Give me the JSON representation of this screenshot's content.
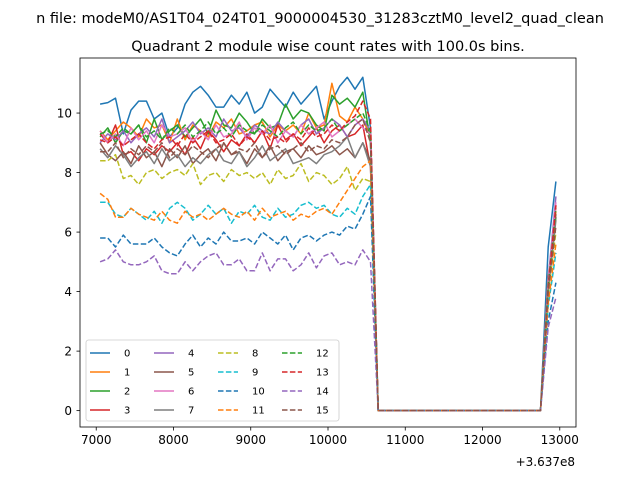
{
  "chart_data": {
    "type": "line",
    "suptitle": "n file: modeM0/AS1T04_024T01_9000004530_31283cztM0_level2_quad_clean",
    "title": "Quadrant 2 module wise count rates with 100.0s bins.",
    "xlabel": "",
    "ylabel": "",
    "x_offset_label": "+3.637e8",
    "xlim": [
      6790,
      13210
    ],
    "ylim": [
      -0.55,
      11.85
    ],
    "xticks": [
      7000,
      8000,
      9000,
      10000,
      11000,
      12000,
      13000
    ],
    "yticks": [
      0,
      2,
      4,
      6,
      8,
      10
    ],
    "grid": false,
    "legend": {
      "placement": "lower-left",
      "columns": 4
    },
    "x": [
      7050,
      7150,
      7250,
      7350,
      7450,
      7550,
      7650,
      7750,
      7850,
      7950,
      8050,
      8150,
      8250,
      8350,
      8450,
      8550,
      8650,
      8750,
      8850,
      8950,
      9050,
      9150,
      9250,
      9350,
      9450,
      9550,
      9650,
      9750,
      9850,
      9950,
      10050,
      10150,
      10250,
      10350,
      10450,
      10550,
      10650,
      10750,
      10850,
      10950,
      11050,
      11150,
      11250,
      11350,
      11450,
      11550,
      11650,
      11750,
      11850,
      11950,
      12050,
      12150,
      12250,
      12350,
      12450,
      12550,
      12650,
      12750,
      12850,
      12950
    ],
    "series": [
      {
        "name": "0",
        "color": "#1f77b4",
        "dash": "solid",
        "values": [
          10.3,
          10.35,
          10.5,
          9.3,
          10.1,
          10.4,
          10.4,
          9.8,
          10.0,
          9.2,
          9.5,
          10.3,
          10.7,
          10.9,
          10.6,
          10.2,
          10.2,
          10.6,
          10.3,
          10.7,
          10.0,
          10.2,
          10.8,
          10.5,
          10.2,
          10.7,
          10.3,
          10.6,
          10.9,
          9.8,
          10.4,
          10.9,
          11.2,
          10.8,
          11.2,
          9.5,
          0,
          0,
          0,
          0,
          0,
          0,
          0,
          0,
          0,
          0,
          0,
          0,
          0,
          0,
          0,
          0,
          0,
          0,
          0,
          0,
          0,
          0,
          5.5,
          7.7
        ]
      },
      {
        "name": "1",
        "color": "#ff7f0e",
        "dash": "solid",
        "values": [
          9.4,
          9.1,
          9.4,
          9.7,
          9.5,
          9.2,
          9.8,
          9.5,
          9.6,
          9.0,
          9.8,
          9.1,
          9.6,
          9.4,
          9.2,
          9.7,
          9.5,
          9.8,
          9.3,
          9.4,
          9.6,
          9.7,
          9.2,
          9.6,
          9.4,
          9.6,
          9.3,
          10.0,
          9.5,
          9.6,
          11.0,
          9.9,
          9.7,
          10.2,
          9.8,
          9.2,
          0,
          0,
          0,
          0,
          0,
          0,
          0,
          0,
          0,
          0,
          0,
          0,
          0,
          0,
          0,
          0,
          0,
          0,
          0,
          0,
          0,
          0,
          4.5,
          6.7
        ]
      },
      {
        "name": "2",
        "color": "#2ca02c",
        "dash": "solid",
        "values": [
          9.2,
          9.5,
          9.0,
          9.4,
          9.3,
          9.6,
          9.0,
          9.8,
          9.1,
          9.4,
          9.6,
          9.2,
          9.5,
          9.8,
          9.3,
          10.1,
          9.6,
          9.5,
          10.0,
          9.7,
          9.3,
          9.8,
          9.5,
          9.6,
          10.3,
          9.8,
          10.1,
          10.0,
          9.6,
          9.4,
          10.6,
          10.3,
          10.5,
          10.2,
          10.7,
          9.0,
          0,
          0,
          0,
          0,
          0,
          0,
          0,
          0,
          0,
          0,
          0,
          0,
          0,
          0,
          0,
          0,
          0,
          0,
          0,
          0,
          0,
          0,
          4.2,
          6.5
        ]
      },
      {
        "name": "3",
        "color": "#d62728",
        "dash": "solid",
        "values": [
          9.3,
          9.0,
          9.6,
          8.6,
          8.7,
          8.4,
          8.8,
          8.6,
          8.9,
          8.7,
          9.0,
          8.6,
          9.2,
          8.8,
          9.4,
          9.1,
          8.7,
          9.1,
          8.9,
          9.3,
          9.0,
          9.4,
          8.8,
          9.6,
          9.1,
          9.3,
          8.9,
          9.2,
          9.5,
          9.0,
          9.4,
          9.6,
          9.2,
          9.3,
          9.6,
          8.2,
          0,
          0,
          0,
          0,
          0,
          0,
          0,
          0,
          0,
          0,
          0,
          0,
          0,
          0,
          0,
          0,
          0,
          0,
          0,
          0,
          0,
          0,
          4.0,
          6.9
        ]
      },
      {
        "name": "4",
        "color": "#9467bd",
        "dash": "solid",
        "values": [
          9.0,
          9.3,
          9.1,
          9.4,
          9.0,
          9.3,
          9.5,
          9.2,
          9.8,
          9.0,
          9.2,
          9.4,
          9.7,
          9.3,
          9.5,
          9.2,
          9.8,
          9.4,
          9.5,
          9.2,
          9.6,
          9.4,
          9.3,
          9.7,
          9.4,
          9.2,
          9.6,
          9.8,
          9.3,
          9.5,
          9.8,
          9.6,
          9.2,
          9.6,
          9.8,
          9.4,
          0,
          0,
          0,
          0,
          0,
          0,
          0,
          0,
          0,
          0,
          0,
          0,
          0,
          0,
          0,
          0,
          0,
          0,
          0,
          0,
          0,
          0,
          4.4,
          7.2
        ]
      },
      {
        "name": "5",
        "color": "#8c564b",
        "dash": "solid",
        "values": [
          9.0,
          8.6,
          8.4,
          8.7,
          8.3,
          8.9,
          8.5,
          8.7,
          8.2,
          8.8,
          8.5,
          8.9,
          8.3,
          8.6,
          8.8,
          8.4,
          9.0,
          8.6,
          8.7,
          8.3,
          8.8,
          8.5,
          8.9,
          8.4,
          8.7,
          8.8,
          8.5,
          8.9,
          8.6,
          8.7,
          8.9,
          8.6,
          8.8,
          8.5,
          9.0,
          8.4,
          0,
          0,
          0,
          0,
          0,
          0,
          0,
          0,
          0,
          0,
          0,
          0,
          0,
          0,
          0,
          0,
          0,
          0,
          0,
          0,
          0,
          0,
          4.1,
          6.6
        ]
      },
      {
        "name": "6",
        "color": "#e377c2",
        "dash": "solid",
        "values": [
          9.4,
          9.0,
          9.3,
          8.9,
          9.5,
          9.1,
          9.4,
          9.0,
          9.6,
          9.2,
          9.3,
          9.5,
          9.0,
          9.4,
          9.1,
          9.6,
          9.2,
          9.3,
          9.7,
          9.1,
          9.5,
          9.3,
          9.6,
          9.0,
          9.4,
          9.2,
          9.6,
          9.3,
          9.5,
          9.7,
          9.2,
          9.4,
          9.6,
          9.8,
          9.5,
          9.3,
          0,
          0,
          0,
          0,
          0,
          0,
          0,
          0,
          0,
          0,
          0,
          0,
          0,
          0,
          0,
          0,
          0,
          0,
          0,
          0,
          0,
          0,
          4.3,
          7.0
        ]
      },
      {
        "name": "7",
        "color": "#7f7f7f",
        "dash": "solid",
        "values": [
          8.8,
          8.5,
          8.9,
          8.6,
          8.2,
          8.5,
          8.7,
          8.3,
          8.8,
          8.4,
          8.6,
          8.2,
          8.5,
          8.3,
          8.6,
          8.8,
          8.4,
          8.3,
          8.7,
          8.2,
          8.5,
          8.9,
          8.4,
          8.6,
          8.8,
          8.3,
          8.4,
          8.5,
          8.3,
          8.6,
          8.7,
          8.9,
          9.2,
          8.5,
          9.0,
          8.2,
          0,
          0,
          0,
          0,
          0,
          0,
          0,
          0,
          0,
          0,
          0,
          0,
          0,
          0,
          0,
          0,
          0,
          0,
          0,
          0,
          0,
          0,
          4.0,
          6.4
        ]
      },
      {
        "name": "8",
        "color": "#bcbd22",
        "dash": "dashed",
        "values": [
          8.4,
          8.4,
          8.6,
          7.8,
          7.9,
          7.6,
          8.0,
          8.1,
          7.8,
          8.0,
          8.1,
          7.9,
          8.3,
          7.6,
          7.9,
          8.0,
          7.7,
          8.1,
          7.9,
          8.0,
          7.8,
          8.0,
          7.6,
          8.1,
          7.8,
          7.9,
          8.3,
          7.7,
          8.0,
          7.9,
          7.6,
          7.8,
          8.2,
          7.4,
          7.8,
          7.7,
          0,
          0,
          0,
          0,
          0,
          0,
          0,
          0,
          0,
          0,
          0,
          0,
          0,
          0,
          0,
          0,
          0,
          0,
          0,
          0,
          0,
          0,
          3.9,
          6.0
        ]
      },
      {
        "name": "9",
        "color": "#17becf",
        "dash": "dashed",
        "values": [
          7.0,
          7.0,
          6.6,
          6.5,
          6.8,
          6.6,
          6.4,
          6.7,
          6.3,
          6.8,
          7.0,
          6.8,
          6.4,
          6.6,
          6.9,
          6.6,
          6.8,
          6.3,
          6.7,
          6.6,
          6.9,
          6.5,
          6.4,
          6.8,
          6.5,
          6.6,
          6.9,
          7.0,
          6.8,
          6.9,
          6.6,
          6.5,
          6.8,
          6.6,
          7.2,
          7.6,
          0,
          0,
          0,
          0,
          0,
          0,
          0,
          0,
          0,
          0,
          0,
          0,
          0,
          0,
          0,
          0,
          0,
          0,
          0,
          0,
          0,
          0,
          3.5,
          5.3
        ]
      },
      {
        "name": "10",
        "color": "#1f77b4",
        "dash": "dashed",
        "values": [
          5.8,
          5.8,
          5.5,
          5.9,
          5.6,
          5.6,
          5.6,
          5.8,
          5.5,
          5.3,
          5.2,
          5.6,
          5.9,
          5.5,
          5.8,
          5.6,
          6.0,
          5.7,
          5.7,
          5.8,
          5.6,
          6.0,
          5.8,
          5.6,
          5.9,
          5.4,
          5.8,
          5.9,
          5.7,
          5.9,
          6.0,
          5.9,
          6.2,
          6.1,
          6.6,
          7.2,
          0,
          0,
          0,
          0,
          0,
          0,
          0,
          0,
          0,
          0,
          0,
          0,
          0,
          0,
          0,
          0,
          0,
          0,
          0,
          0,
          0,
          0,
          3.0,
          4.3
        ]
      },
      {
        "name": "11",
        "color": "#ff7f0e",
        "dash": "dashed",
        "values": [
          7.3,
          7.1,
          6.5,
          6.5,
          6.8,
          6.6,
          6.5,
          6.4,
          6.7,
          6.4,
          6.3,
          6.7,
          6.5,
          6.6,
          6.4,
          6.6,
          6.8,
          6.6,
          6.5,
          6.7,
          6.4,
          6.8,
          6.5,
          6.6,
          6.7,
          6.4,
          6.6,
          6.5,
          6.7,
          6.8,
          6.6,
          7.0,
          7.4,
          7.8,
          8.2,
          8.4,
          0,
          0,
          0,
          0,
          0,
          0,
          0,
          0,
          0,
          0,
          0,
          0,
          0,
          0,
          0,
          0,
          0,
          0,
          0,
          0,
          0,
          0,
          3.6,
          5.6
        ]
      },
      {
        "name": "12",
        "color": "#2ca02c",
        "dash": "dashed",
        "values": [
          9.3,
          9.4,
          9.2,
          9.5,
          9.3,
          9.6,
          9.2,
          9.4,
          9.1,
          9.5,
          9.3,
          9.6,
          9.2,
          9.4,
          9.7,
          9.3,
          9.5,
          9.2,
          9.6,
          9.4,
          9.3,
          9.6,
          9.4,
          9.2,
          9.5,
          9.7,
          9.3,
          9.6,
          9.4,
          9.5,
          9.8,
          9.4,
          9.6,
          9.8,
          10.0,
          9.4,
          0,
          0,
          0,
          0,
          0,
          0,
          0,
          0,
          0,
          0,
          0,
          0,
          0,
          0,
          0,
          0,
          0,
          0,
          0,
          0,
          0,
          0,
          4.2,
          6.8
        ]
      },
      {
        "name": "13",
        "color": "#d62728",
        "dash": "dashed",
        "values": [
          9.1,
          9.0,
          9.2,
          8.9,
          9.1,
          9.3,
          9.0,
          8.8,
          9.1,
          9.2,
          8.9,
          9.3,
          9.0,
          9.2,
          9.4,
          9.0,
          9.1,
          9.3,
          8.9,
          9.2,
          9.0,
          9.4,
          9.1,
          9.2,
          9.0,
          9.3,
          9.1,
          9.5,
          9.2,
          9.3,
          9.6,
          9.4,
          9.7,
          9.9,
          10.4,
          9.8,
          0,
          0,
          0,
          0,
          0,
          0,
          0,
          0,
          0,
          0,
          0,
          0,
          0,
          0,
          0,
          0,
          0,
          0,
          0,
          0,
          0,
          0,
          4.1,
          6.9
        ]
      },
      {
        "name": "14",
        "color": "#9467bd",
        "dash": "dashed",
        "values": [
          5.0,
          5.1,
          5.4,
          5.0,
          4.9,
          4.9,
          5.0,
          5.2,
          4.7,
          4.6,
          4.6,
          5.0,
          4.7,
          5.0,
          5.2,
          5.3,
          4.9,
          4.9,
          5.1,
          4.7,
          4.7,
          5.3,
          4.7,
          5.1,
          5.1,
          4.7,
          4.9,
          5.3,
          4.8,
          5.2,
          5.3,
          4.9,
          5.0,
          4.9,
          5.4,
          5.0,
          0,
          0,
          0,
          0,
          0,
          0,
          0,
          0,
          0,
          0,
          0,
          0,
          0,
          0,
          0,
          0,
          0,
          0,
          0,
          0,
          0,
          0,
          2.8,
          3.8
        ]
      },
      {
        "name": "15",
        "color": "#8c564b",
        "dash": "dashed",
        "values": [
          8.7,
          8.7,
          9.0,
          8.5,
          8.8,
          8.6,
          8.9,
          8.7,
          9.0,
          8.5,
          8.8,
          8.6,
          8.9,
          8.7,
          8.5,
          8.8,
          9.0,
          8.6,
          8.8,
          8.7,
          9.0,
          8.5,
          8.8,
          8.9,
          8.6,
          8.8,
          9.0,
          8.7,
          8.9,
          8.8,
          9.1,
          9.0,
          9.2,
          9.6,
          9.8,
          9.0,
          0,
          0,
          0,
          0,
          0,
          0,
          0,
          0,
          0,
          0,
          0,
          0,
          0,
          0,
          0,
          0,
          0,
          0,
          0,
          0,
          0,
          0,
          4.0,
          6.2
        ]
      }
    ]
  }
}
